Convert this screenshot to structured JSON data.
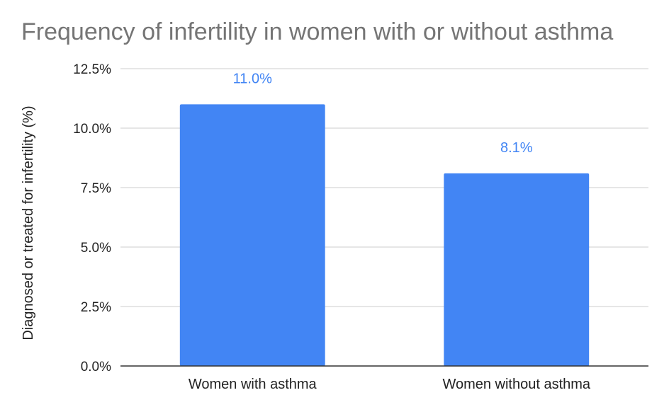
{
  "chart_data": {
    "type": "bar",
    "title": "Frequency of infertility in women with or without asthma",
    "xlabel": "",
    "ylabel": "Diagnosed or treated for infertility (%)",
    "categories": [
      "Women with asthma",
      "Women without asthma"
    ],
    "values": [
      11.0,
      8.1
    ],
    "data_labels": [
      "11.0%",
      "8.1%"
    ],
    "ylim": [
      0,
      12.5
    ],
    "yticks": [
      0,
      2.5,
      5,
      7.5,
      10,
      12.5
    ],
    "ytick_labels": [
      "0.0%",
      "2.5%",
      "5.0%",
      "7.5%",
      "10.0%",
      "12.5%"
    ],
    "grid": true,
    "legend": "none",
    "colors": {
      "bar": "#4285f4",
      "data_label": "#4285f4",
      "title": "#757575",
      "grid": "#cccccc",
      "axis": "#333333"
    }
  }
}
